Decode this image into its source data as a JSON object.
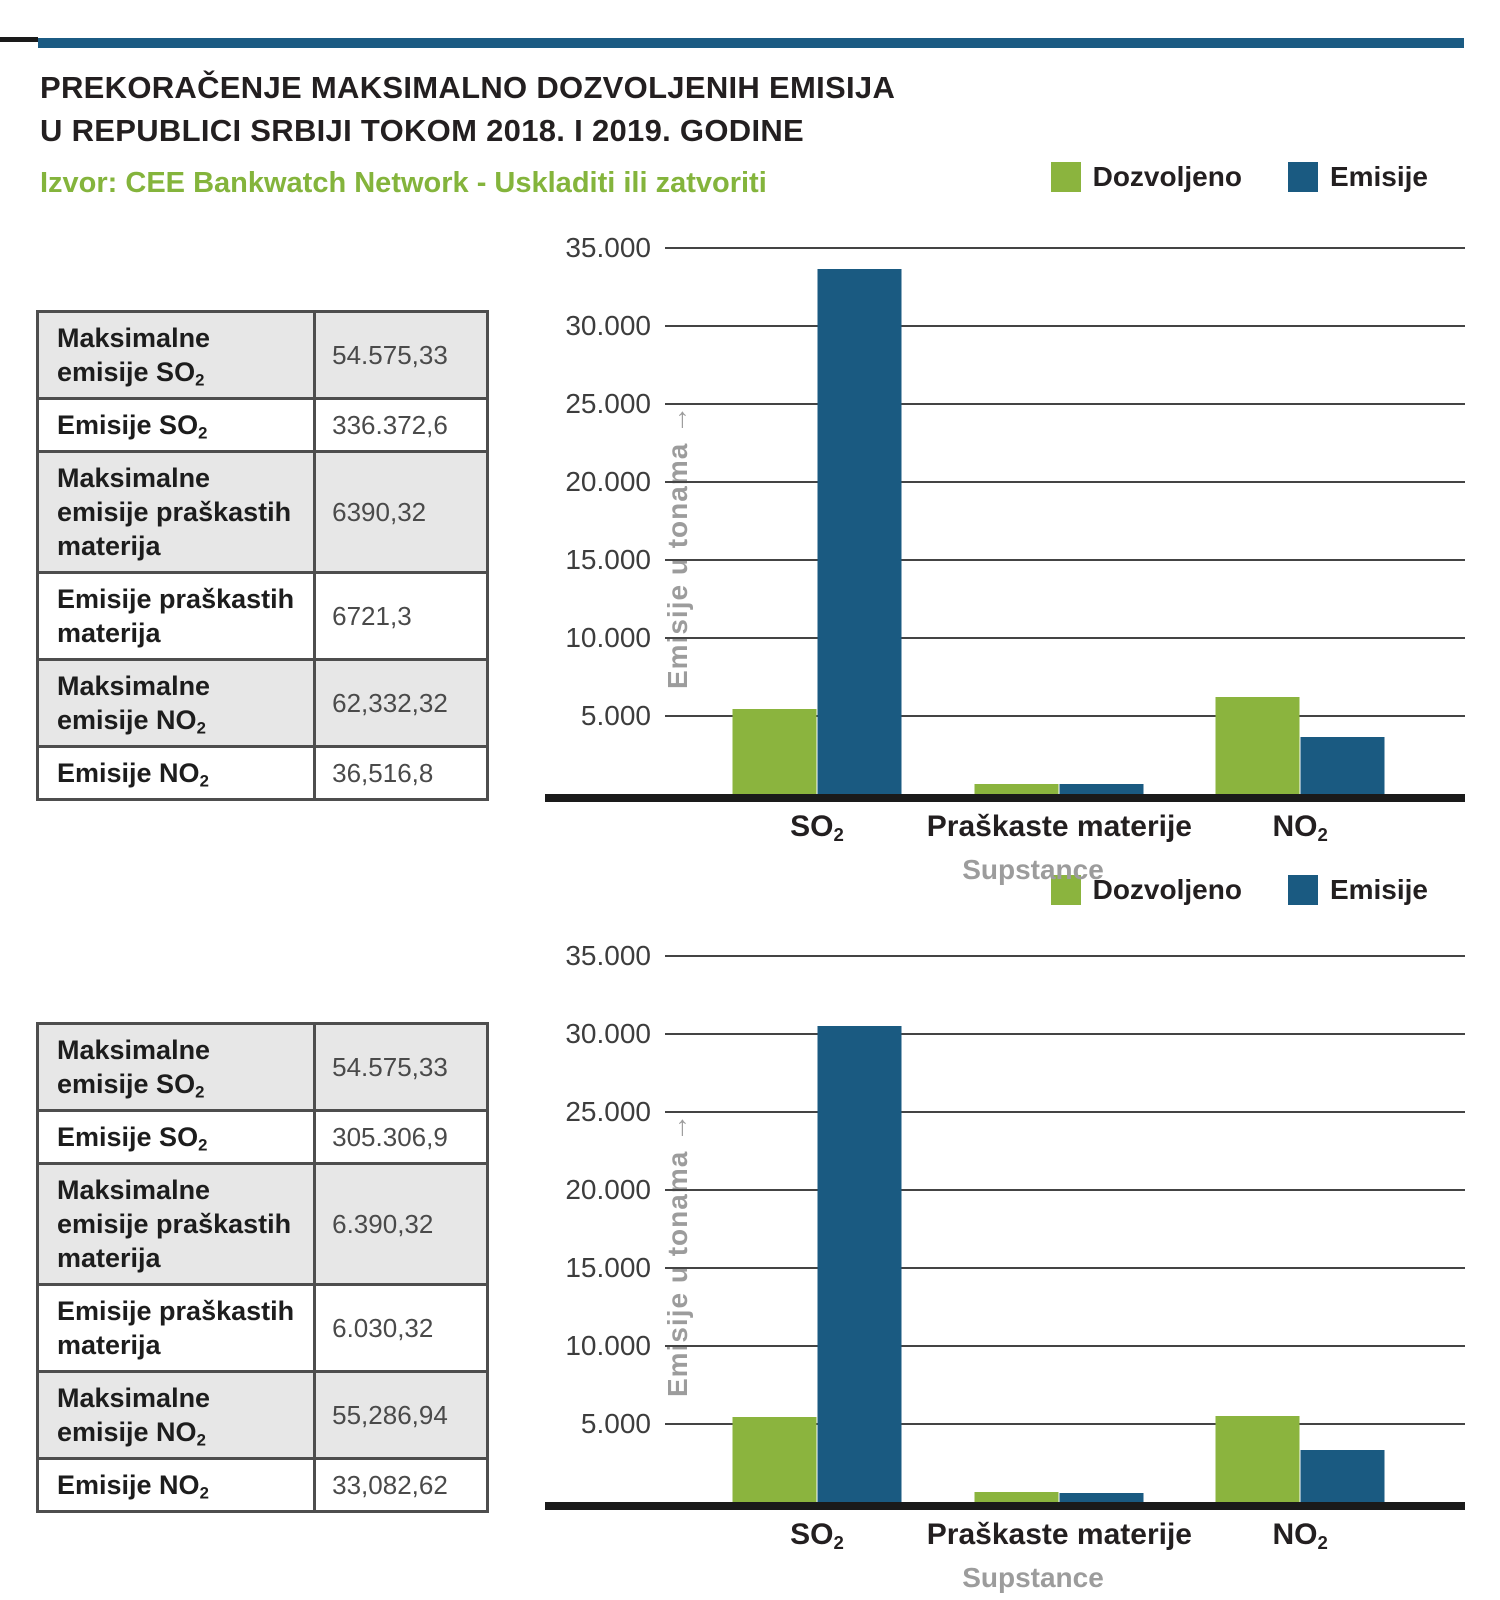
{
  "page": {
    "title_line1": "PREKORAČENJE MAKSIMALNO DOZVOLJENIH EMISIJA",
    "title_line2": "U REPUBLICI SRBIJI TOKOM 2018. I 2019. GODINE",
    "source": "Izvor: CEE Bankwatch Network - Uskladiti ili zatvoriti"
  },
  "colors": {
    "accent_green": "#8bb43e",
    "accent_blue": "#1a5a81",
    "title_text": "#231f20",
    "source_text": "#84b43c",
    "grid_line": "#444444",
    "axis_line": "#1a1a1a",
    "axis_title_gray": "#9c9c9c",
    "table_border": "#4e4e4e",
    "table_shaded_row": "#e7e7e7"
  },
  "legend": {
    "items": [
      {
        "label": "Dozvoljeno",
        "color": "#8bb43e"
      },
      {
        "label": "Emisije",
        "color": "#1a5a81"
      }
    ]
  },
  "tables": [
    {
      "rows": [
        {
          "shaded": true,
          "value": "54.575,33",
          "lines": [
            {
              "text": "Maksimalne",
              "sub": ""
            },
            {
              "text": "emisije SO",
              "sub": "2"
            }
          ]
        },
        {
          "shaded": false,
          "value": "336.372,6",
          "lines": [
            {
              "text": "Emisije SO",
              "sub": "2"
            }
          ]
        },
        {
          "shaded": true,
          "value": "6390,32",
          "lines": [
            {
              "text": "Maksimalne",
              "sub": ""
            },
            {
              "text": "emisije praškastih",
              "sub": ""
            },
            {
              "text": "materija",
              "sub": ""
            }
          ]
        },
        {
          "shaded": false,
          "value": "6721,3",
          "lines": [
            {
              "text": "Emisije praškastih",
              "sub": ""
            },
            {
              "text": "materija",
              "sub": ""
            }
          ]
        },
        {
          "shaded": true,
          "value": "62,332,32",
          "lines": [
            {
              "text": "Maksimalne",
              "sub": ""
            },
            {
              "text": "emisije NO",
              "sub": "2"
            }
          ]
        },
        {
          "shaded": false,
          "value": "36,516,8",
          "lines": [
            {
              "text": "Emisije NO",
              "sub": "2"
            }
          ]
        }
      ]
    },
    {
      "rows": [
        {
          "shaded": true,
          "value": "54.575,33",
          "lines": [
            {
              "text": "Maksimalne",
              "sub": ""
            },
            {
              "text": "emisije SO",
              "sub": "2"
            }
          ]
        },
        {
          "shaded": false,
          "value": "305.306,9",
          "lines": [
            {
              "text": "Emisije SO",
              "sub": "2"
            }
          ]
        },
        {
          "shaded": true,
          "value": "6.390,32",
          "lines": [
            {
              "text": "Maksimalne",
              "sub": ""
            },
            {
              "text": "emisije praškastih",
              "sub": ""
            },
            {
              "text": "materija",
              "sub": ""
            }
          ]
        },
        {
          "shaded": false,
          "value": "6.030,32",
          "lines": [
            {
              "text": "Emisije praškastih",
              "sub": ""
            },
            {
              "text": "materija",
              "sub": ""
            }
          ]
        },
        {
          "shaded": true,
          "value": "55,286,94",
          "lines": [
            {
              "text": "Maksimalne",
              "sub": ""
            },
            {
              "text": "emisije NO",
              "sub": "2"
            }
          ]
        },
        {
          "shaded": false,
          "value": "33,082,62",
          "lines": [
            {
              "text": "Emisije NO",
              "sub": "2"
            }
          ]
        }
      ]
    }
  ],
  "chart_data": [
    {
      "type": "bar",
      "title": "",
      "categories": [
        {
          "text": "SO",
          "sub": "2"
        },
        {
          "text": "Praškaste materije",
          "sub": ""
        },
        {
          "text": "NO",
          "sub": "2"
        }
      ],
      "series": [
        {
          "name": "Dozvoljeno",
          "color": "#8bb43e",
          "values": [
            5457.5,
            639.0,
            6233.2
          ]
        },
        {
          "name": "Emisije",
          "color": "#1a5a81",
          "values": [
            33637.3,
            672.1,
            3651.7
          ]
        }
      ],
      "xlabel": "Supstance",
      "ylabel": "Emisije u tonama →",
      "ylim": [
        0,
        35000
      ],
      "yticks": [
        5000,
        10000,
        15000,
        20000,
        25000,
        30000,
        35000
      ],
      "ytick_labels": [
        "5.000",
        "10.000",
        "15.000",
        "20.000",
        "25.000",
        "30.000",
        "35.000"
      ],
      "grid": true,
      "legend_position": "top-right"
    },
    {
      "type": "bar",
      "title": "",
      "categories": [
        {
          "text": "SO",
          "sub": "2"
        },
        {
          "text": "Praškaste materije",
          "sub": ""
        },
        {
          "text": "NO",
          "sub": "2"
        }
      ],
      "series": [
        {
          "name": "Dozvoljeno",
          "color": "#8bb43e",
          "values": [
            5457.5,
            639.0,
            5528.7
          ]
        },
        {
          "name": "Emisije",
          "color": "#1a5a81",
          "values": [
            30530.7,
            603.0,
            3308.3
          ]
        }
      ],
      "xlabel": "Supstance",
      "ylabel": "Emisije u tonama →",
      "ylim": [
        0,
        35000
      ],
      "yticks": [
        5000,
        10000,
        15000,
        20000,
        25000,
        30000,
        35000
      ],
      "ytick_labels": [
        "5.000",
        "10.000",
        "15.000",
        "20.000",
        "25.000",
        "30.000",
        "35.000"
      ],
      "grid": true,
      "legend_position": "top-right"
    }
  ]
}
